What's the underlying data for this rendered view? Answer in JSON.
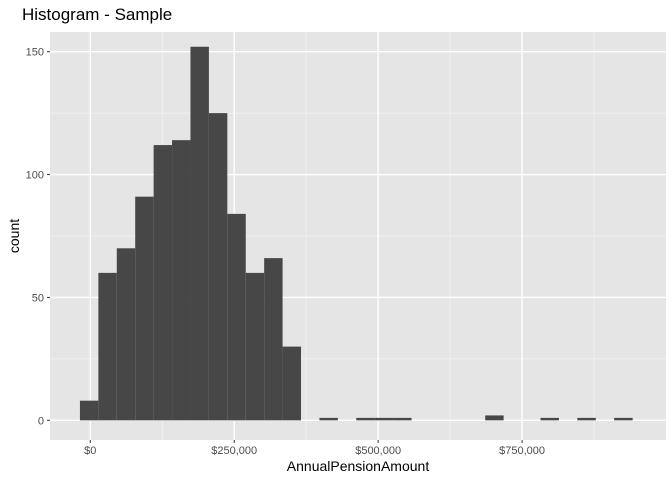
{
  "chart_data": {
    "type": "bar",
    "title": "Histogram - Sample",
    "xlabel": "AnnualPensionAmount",
    "ylabel": "count",
    "xlim": [
      -70000,
      1000000
    ],
    "ylim": [
      -8,
      158
    ],
    "x_ticks": [
      {
        "value": 0,
        "label": "$0"
      },
      {
        "value": 250000,
        "label": "$250,000"
      },
      {
        "value": 500000,
        "label": "$500,000"
      },
      {
        "value": 750000,
        "label": "$750,000"
      }
    ],
    "y_ticks": [
      {
        "value": 0,
        "label": "0"
      },
      {
        "value": 50,
        "label": "50"
      },
      {
        "value": 100,
        "label": "100"
      },
      {
        "value": 150,
        "label": "150"
      }
    ],
    "bin_width": 32000,
    "bins": [
      {
        "x0": -18000,
        "x1": 14000,
        "count": 8
      },
      {
        "x0": 14000,
        "x1": 46000,
        "count": 60
      },
      {
        "x0": 46000,
        "x1": 78000,
        "count": 70
      },
      {
        "x0": 78000,
        "x1": 110000,
        "count": 91
      },
      {
        "x0": 110000,
        "x1": 142000,
        "count": 112
      },
      {
        "x0": 142000,
        "x1": 174000,
        "count": 114
      },
      {
        "x0": 174000,
        "x1": 206000,
        "count": 152
      },
      {
        "x0": 206000,
        "x1": 238000,
        "count": 125
      },
      {
        "x0": 238000,
        "x1": 270000,
        "count": 84
      },
      {
        "x0": 270000,
        "x1": 302000,
        "count": 60
      },
      {
        "x0": 302000,
        "x1": 334000,
        "count": 66
      },
      {
        "x0": 334000,
        "x1": 366000,
        "count": 30
      },
      {
        "x0": 398000,
        "x1": 430000,
        "count": 1
      },
      {
        "x0": 462000,
        "x1": 494000,
        "count": 1
      },
      {
        "x0": 494000,
        "x1": 526000,
        "count": 1
      },
      {
        "x0": 526000,
        "x1": 558000,
        "count": 1
      },
      {
        "x0": 686000,
        "x1": 718000,
        "count": 2
      },
      {
        "x0": 782000,
        "x1": 814000,
        "count": 1
      },
      {
        "x0": 846000,
        "x1": 878000,
        "count": 1
      },
      {
        "x0": 910000,
        "x1": 942000,
        "count": 1
      }
    ],
    "grid": true,
    "colors": {
      "panel_background": "#e5e5e5",
      "grid_major": "#ffffff",
      "grid_minor": "#f2f2f2",
      "bar_fill": "#474747"
    }
  }
}
